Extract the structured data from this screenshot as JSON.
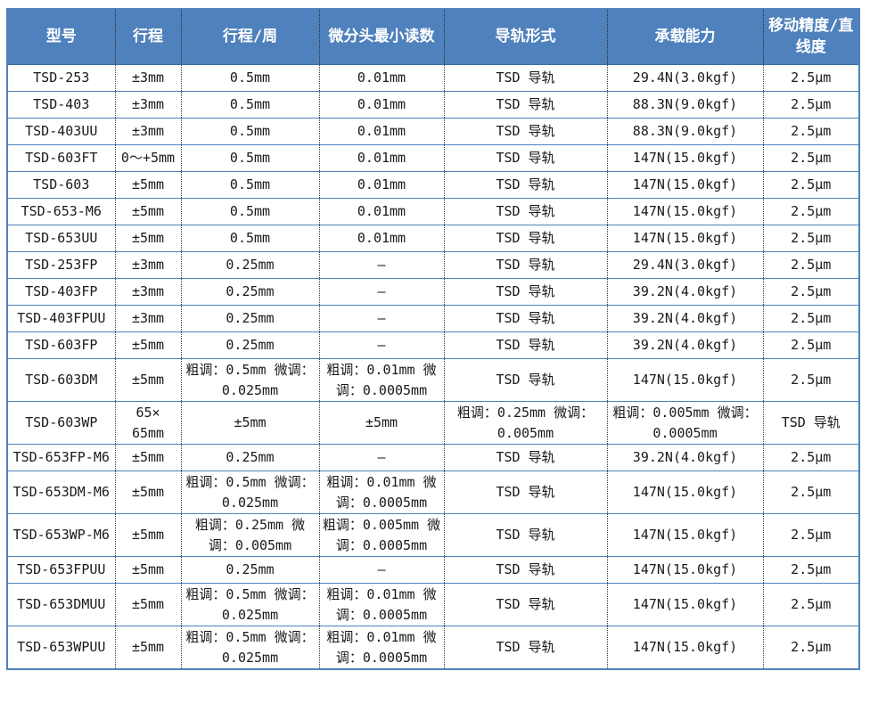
{
  "colors": {
    "header_bg": "#4f81bd",
    "header_text": "#ffffff",
    "row_border": "#4f81bd",
    "cell_divider_dotted": "#3a3a3a",
    "body_text": "#1a1a1a"
  },
  "table": {
    "headers": [
      "型号",
      "行程",
      "行程/周",
      "微分头最小读数",
      "导轨形式",
      "承载能力",
      "移动精度/直线度"
    ],
    "rows": [
      [
        "TSD-253",
        "±3mm",
        "0.5mm",
        "0.01mm",
        "TSD 导轨",
        "29.4N(3.0kgf)",
        "2.5μm"
      ],
      [
        "TSD-403",
        "±3mm",
        "0.5mm",
        "0.01mm",
        "TSD 导轨",
        "88.3N(9.0kgf)",
        "2.5μm"
      ],
      [
        "TSD-403UU",
        "±3mm",
        "0.5mm",
        "0.01mm",
        "TSD 导轨",
        "88.3N(9.0kgf)",
        "2.5μm"
      ],
      [
        "TSD-603FT",
        "0～+5mm",
        "0.5mm",
        "0.01mm",
        "TSD 导轨",
        "147N(15.0kgf)",
        "2.5μm"
      ],
      [
        "TSD-603",
        "±5mm",
        "0.5mm",
        "0.01mm",
        "TSD 导轨",
        "147N(15.0kgf)",
        "2.5μm"
      ],
      [
        "TSD-653-M6",
        "±5mm",
        "0.5mm",
        "0.01mm",
        "TSD 导轨",
        "147N(15.0kgf)",
        "2.5μm"
      ],
      [
        "TSD-653UU",
        "±5mm",
        "0.5mm",
        "0.01mm",
        "TSD 导轨",
        "147N(15.0kgf)",
        "2.5μm"
      ],
      [
        "TSD-253FP",
        "±3mm",
        "0.25mm",
        "—",
        "TSD 导轨",
        "29.4N(3.0kgf)",
        "2.5μm"
      ],
      [
        "TSD-403FP",
        "±3mm",
        "0.25mm",
        "—",
        "TSD 导轨",
        "39.2N(4.0kgf)",
        "2.5μm"
      ],
      [
        "TSD-403FPUU",
        "±3mm",
        "0.25mm",
        "—",
        "TSD 导轨",
        "39.2N(4.0kgf)",
        "2.5μm"
      ],
      [
        "TSD-603FP",
        "±5mm",
        "0.25mm",
        "—",
        "TSD 导轨",
        "39.2N(4.0kgf)",
        "2.5μm"
      ],
      [
        "TSD-603DM",
        "±5mm",
        "粗调：0.5mm 微调：0.025mm",
        "粗调：0.01mm 微调：0.0005mm",
        "TSD 导轨",
        "147N(15.0kgf)",
        "2.5μm"
      ],
      [
        "TSD-603WP",
        "65×\n65mm",
        "±5mm",
        "±5mm",
        "粗调：0.25mm 微调：0.005mm",
        "粗调：0.005mm 微调：0.0005mm",
        "TSD 导轨"
      ],
      [
        "TSD-653FP-M6",
        "±5mm",
        "0.25mm",
        "—",
        "TSD 导轨",
        "39.2N(4.0kgf)",
        "2.5μm"
      ],
      [
        "TSD-653DM-M6",
        "±5mm",
        "粗调：0.5mm 微调：0.025mm",
        "粗调：0.01mm 微调：0.0005mm",
        "TSD 导轨",
        "147N(15.0kgf)",
        "2.5μm"
      ],
      [
        "TSD-653WP-M6",
        "±5mm",
        "粗调：0.25mm 微调：0.005mm",
        "粗调：0.005mm 微调：0.0005mm",
        "TSD 导轨",
        "147N(15.0kgf)",
        "2.5μm"
      ],
      [
        "TSD-653FPUU",
        "±5mm",
        "0.25mm",
        "—",
        "TSD 导轨",
        "147N(15.0kgf)",
        "2.5μm"
      ],
      [
        "TSD-653DMUU",
        "±5mm",
        "粗调：0.5mm 微调：0.025mm",
        "粗调：0.01mm 微调：0.0005mm",
        "TSD 导轨",
        "147N(15.0kgf)",
        "2.5μm"
      ],
      [
        "TSD-653WPUU",
        "±5mm",
        "粗调：0.5mm 微调：0.025mm",
        "粗调：0.01mm 微调：0.0005mm",
        "TSD 导轨",
        "147N(15.0kgf)",
        "2.5μm"
      ]
    ]
  }
}
